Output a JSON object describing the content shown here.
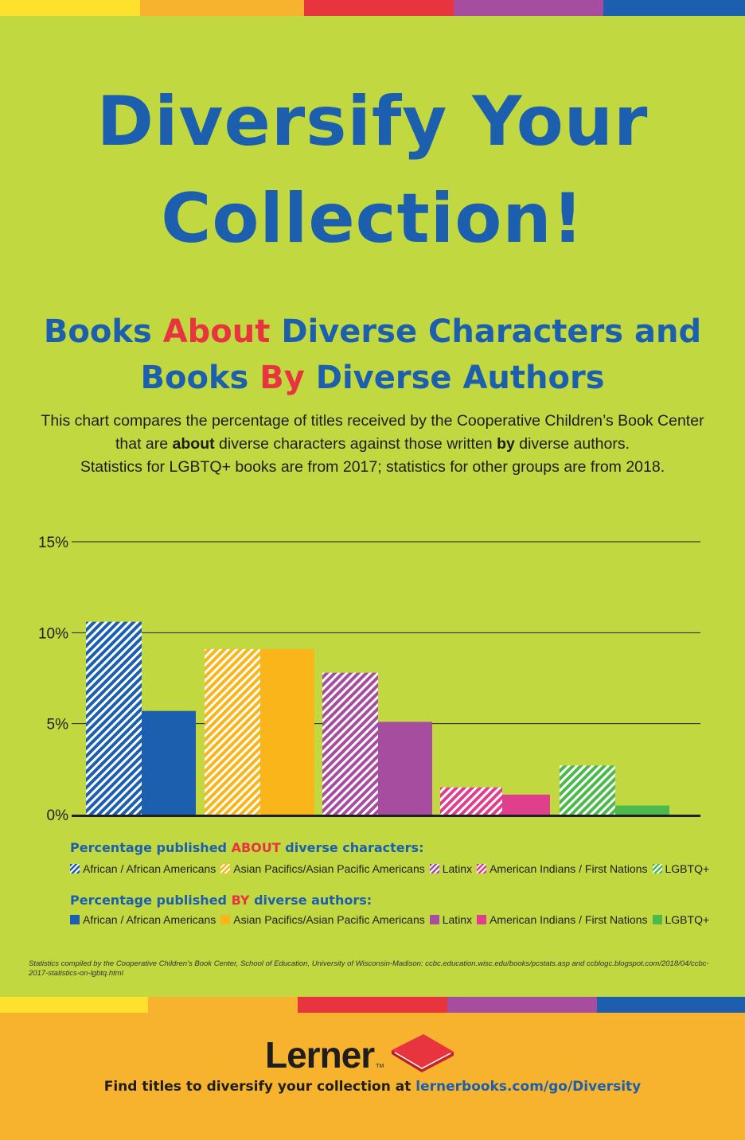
{
  "colors": {
    "background": "#c2d840",
    "title_blue": "#1b5fae",
    "accent_red": "#e8343f",
    "footer": "#f7b32e",
    "stripe": [
      "#fde12d",
      "#f7b32e",
      "#e8343f",
      "#a64d9f",
      "#1b5fae"
    ]
  },
  "header": {
    "title_line1": "Diversify Your",
    "title_line2": "Collection!",
    "subtitle": {
      "w1": "Books",
      "about": "About",
      "w2": "Diverse Characters and",
      "w3": "Books",
      "by": "By",
      "w4": "Diverse Authors"
    }
  },
  "description": {
    "line1": "This chart compares the percentage of titles received by the Cooperative Children’s Book Center",
    "line2_a": "that are",
    "line2_about": "about",
    "line2_b": "diverse characters against those written",
    "line2_by": "by",
    "line2_c": "diverse authors.",
    "line3": "Statistics for LGBTQ+ books are from 2017; statistics for other groups are from 2018."
  },
  "chart_data": {
    "type": "bar",
    "categories": [
      "African / African Americans",
      "Asian Pacifics/Asian Pacific Americans",
      "Latinx",
      "American Indians / First Nations",
      "LGBTQ+"
    ],
    "series": [
      {
        "name": "Percentage published ABOUT diverse characters",
        "values": [
          10.6,
          9.1,
          7.8,
          1.5,
          2.7
        ]
      },
      {
        "name": "Percentage published BY diverse authors",
        "values": [
          5.7,
          9.1,
          5.1,
          1.1,
          0.5
        ]
      }
    ],
    "category_colors": [
      "#1b5fae",
      "#f9b51a",
      "#a64d9f",
      "#e03f8e",
      "#4cb94d"
    ],
    "yticks": [
      "0%",
      "5%",
      "10%",
      "15%"
    ],
    "ylim": [
      0,
      15
    ],
    "grid": true
  },
  "legend": {
    "about_head_a": "Percentage published",
    "about_head_b": "ABOUT",
    "about_head_c": "diverse characters:",
    "by_head_a": "Percentage published",
    "by_head_b": "BY",
    "by_head_c": "diverse authors:",
    "items": [
      "African / African Americans",
      "Asian Pacifics/Asian Pacific Americans",
      "Latinx",
      "American Indians / First Nations",
      "LGBTQ+"
    ]
  },
  "source": "Statistics compiled by the Cooperative Children’s Book Center, School of Education, University of Wisconsin-Madison: ccbc.education.wisc.edu/books/pcstats.asp and ccblogc.blogspot.com/2018/04/ccbc-2017-statistics-on-lgbtq.html",
  "footer": {
    "logo": "Lerner",
    "tm": "TM",
    "cta": "Find titles to diversify your collection at",
    "link": "lernerbooks.com/go/Diversity"
  }
}
